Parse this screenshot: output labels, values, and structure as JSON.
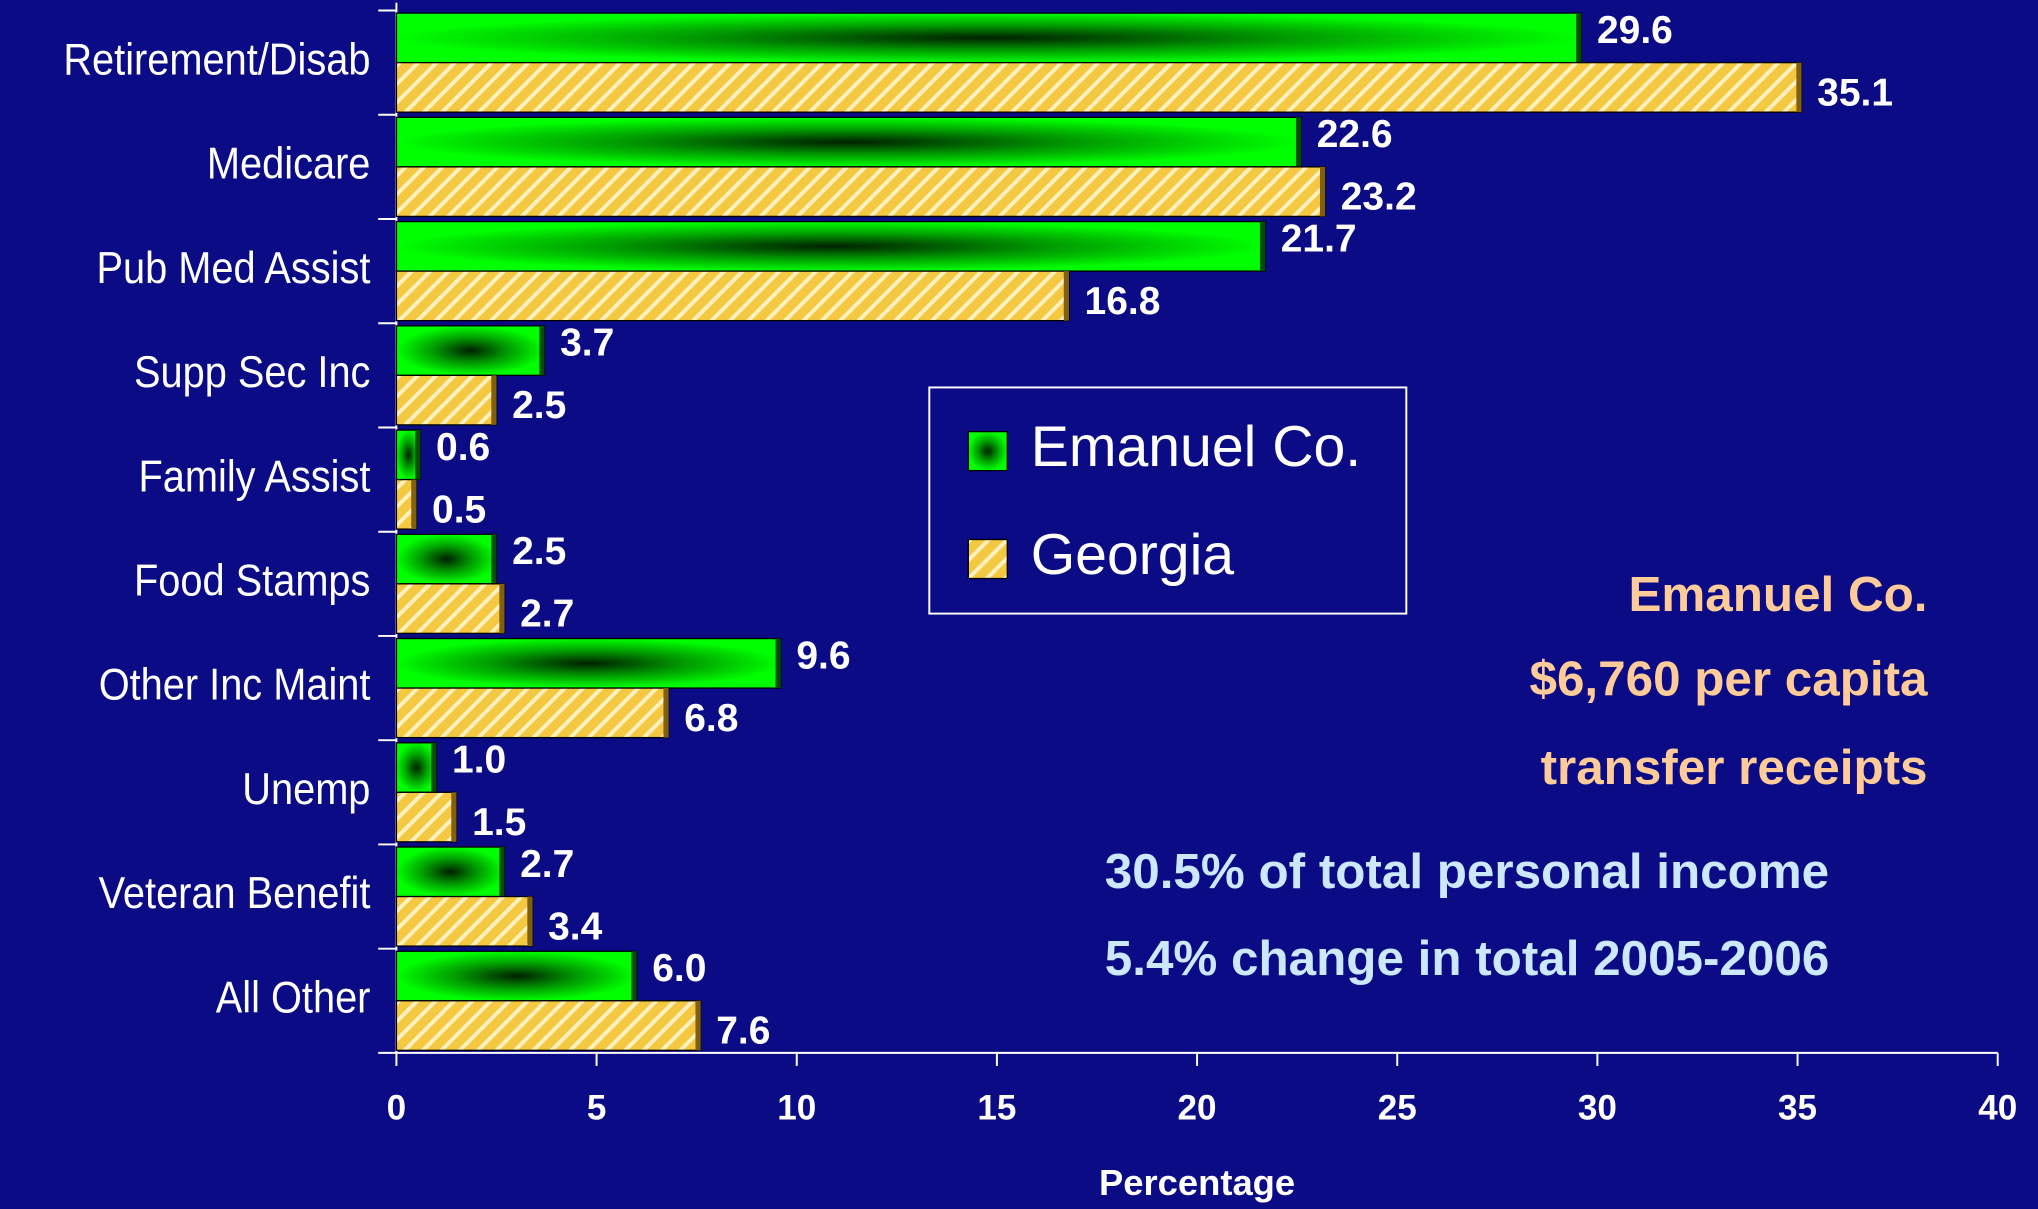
{
  "chart_data": {
    "type": "bar",
    "orientation": "horizontal",
    "categories": [
      "Retirement/Disab",
      "Medicare",
      "Pub Med Assist",
      "Supp Sec Inc",
      "Family Assist",
      "Food Stamps",
      "Other Inc Maint",
      "Unemp",
      "Veteran Benefit",
      "All Other"
    ],
    "series": [
      {
        "name": "Emanuel Co.",
        "color": "#00e000",
        "values": [
          29.6,
          22.6,
          21.7,
          3.7,
          0.6,
          2.5,
          9.6,
          1.0,
          2.7,
          6.0
        ],
        "value_labels": [
          "29.6",
          "22.6",
          "21.7",
          "3.7",
          "0.6",
          "2.5",
          "9.6",
          "1.0",
          "2.7",
          "6.0"
        ]
      },
      {
        "name": "Georgia",
        "color": "#f5c842",
        "values": [
          35.1,
          23.2,
          16.8,
          2.5,
          0.5,
          2.7,
          6.8,
          1.5,
          3.4,
          7.6
        ],
        "value_labels": [
          "35.1",
          "23.2",
          "16.8",
          "2.5",
          "0.5",
          "2.7",
          "6.8",
          "1.5",
          "3.4",
          "7.6"
        ]
      }
    ],
    "x_label": "Percentage",
    "xlim": [
      0,
      40
    ],
    "xticks": [
      0,
      5,
      10,
      15,
      20,
      25,
      30,
      35,
      40
    ],
    "annotations": [
      "Emanuel Co.",
      "$6,760  per capita",
      "transfer receipts",
      "30.5% of total personal income",
      "5.4% change in total 2005-2006"
    ]
  }
}
